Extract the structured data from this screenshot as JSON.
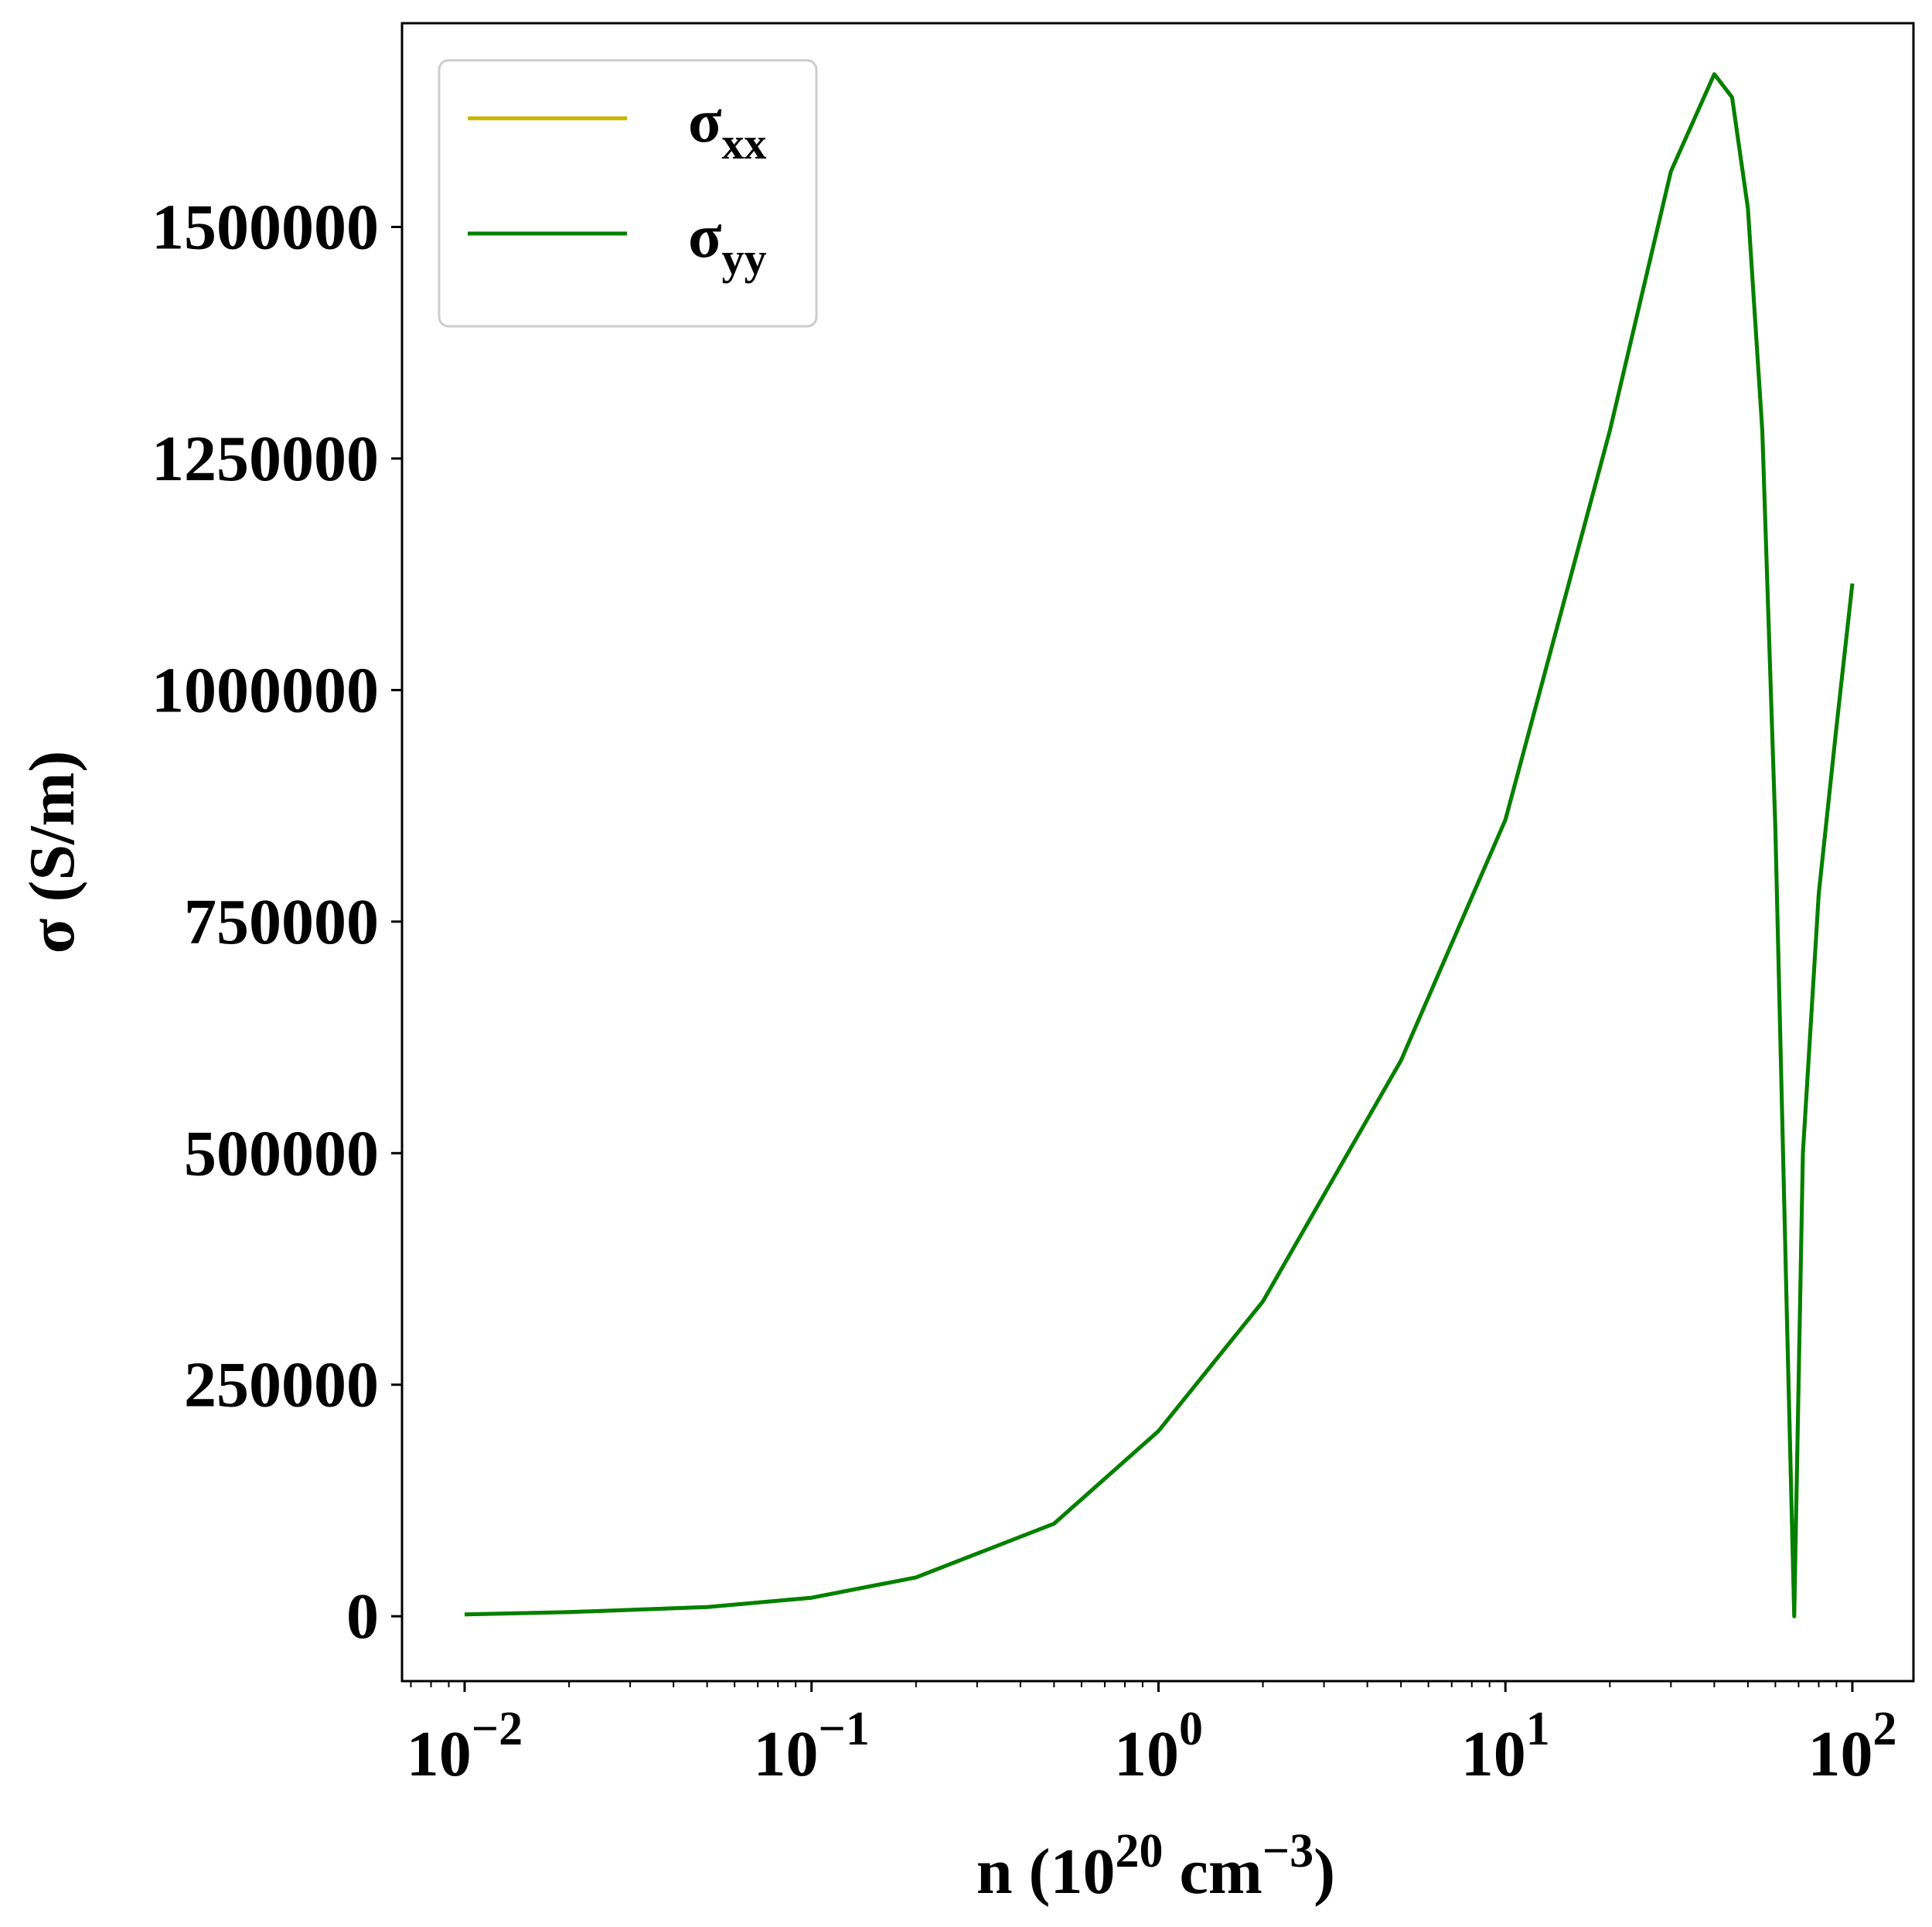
{
  "chart_data": {
    "type": "line",
    "xlabel": {
      "base": "n (10",
      "exp1": "20",
      "mid": " cm",
      "exp2": "−3",
      "end": ")"
    },
    "ylabel": "σ (S/m)",
    "x_scale": "log",
    "xlim": [
      0.0066,
      150
    ],
    "ylim": [
      -70000,
      1720000
    ],
    "grid": false,
    "legend_position": "top-left",
    "x_ticks": [
      {
        "base": "10",
        "exp": "−2",
        "value": 0.01
      },
      {
        "base": "10",
        "exp": "−1",
        "value": 0.1
      },
      {
        "base": "10",
        "exp": "0",
        "value": 1
      },
      {
        "base": "10",
        "exp": "1",
        "value": 10
      },
      {
        "base": "10",
        "exp": "2",
        "value": 100
      }
    ],
    "y_ticks": [
      {
        "label": "0",
        "value": 0
      },
      {
        "label": "250000",
        "value": 250000
      },
      {
        "label": "500000",
        "value": 500000
      },
      {
        "label": "750000",
        "value": 750000
      },
      {
        "label": "1000000",
        "value": 1000000
      },
      {
        "label": "1250000",
        "value": 1250000
      },
      {
        "label": "1500000",
        "value": 1500000
      }
    ],
    "series": [
      {
        "name": "σxx",
        "base": "σ",
        "sub": "xx",
        "color": "#c8b400",
        "x": [
          0.01,
          0.02,
          0.05,
          0.1,
          0.2,
          0.5,
          1,
          2,
          5,
          10,
          20,
          30,
          40,
          45,
          50,
          55,
          60,
          65,
          68,
          72,
          80,
          90,
          100
        ],
        "y": [
          2000,
          4500,
          10000,
          20000,
          42000,
          100000,
          200000,
          340000,
          600000,
          860000,
          1280000,
          1560000,
          1665000,
          1640000,
          1520000,
          1280000,
          850000,
          300000,
          0,
          500000,
          780000,
          960000,
          1115000
        ]
      },
      {
        "name": "σyy",
        "base": "σ",
        "sub": "yy",
        "color": "#008000",
        "x": [
          0.01,
          0.02,
          0.05,
          0.1,
          0.2,
          0.5,
          1,
          2,
          5,
          10,
          20,
          30,
          40,
          45,
          50,
          55,
          60,
          65,
          68,
          72,
          80,
          90,
          100
        ],
        "y": [
          2000,
          4500,
          10000,
          20000,
          42000,
          100000,
          200000,
          340000,
          600000,
          860000,
          1280000,
          1560000,
          1665000,
          1640000,
          1520000,
          1280000,
          850000,
          300000,
          0,
          500000,
          780000,
          960000,
          1115000
        ]
      }
    ]
  }
}
